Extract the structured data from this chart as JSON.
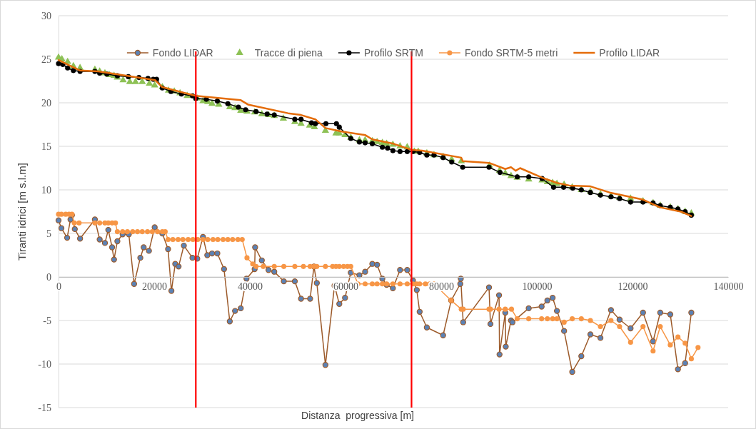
{
  "chart_data": {
    "type": "line",
    "xlabel": "Distanza  progressiva [m]",
    "ylabel": "Tiranti idrici [m s.l.m]",
    "xlim": [
      0,
      140000
    ],
    "xticks": [
      0,
      20000,
      40000,
      60000,
      80000,
      100000,
      120000,
      140000
    ],
    "ylim": [
      -15,
      30
    ],
    "yticks": [
      -15,
      -10,
      -5,
      0,
      5,
      10,
      15,
      20,
      25,
      30
    ],
    "grid": "y",
    "legend": "top",
    "ref_lines": [
      {
        "axis": "x",
        "value": 28700,
        "color": "#ff0000"
      },
      {
        "axis": "x",
        "value": 73800,
        "color": "#ff0000"
      }
    ],
    "series": [
      {
        "name": "Fondo LIDAR",
        "type": "line",
        "marker": "circle",
        "color": "#9c5a2a",
        "colors": [
          "#5b82b5",
          "#5b82b5",
          "#5b82b5",
          "#5b82b5",
          "#5b82b5",
          "#5b82b5",
          "#5b82b5",
          "#5b82b5",
          "#5b82b5",
          "#5b82b5",
          "#5b82b5",
          "#5b82b5",
          "#5b82b5",
          "#5b82b5",
          "#5b82b5",
          "#5b82b5",
          "#5b82b5",
          "#5b82b5",
          "#5b82b5",
          "#5b82b5",
          "#5b82b5",
          "#5b82b5",
          "#5b82b5",
          "#5b82b5",
          "#5b82b5",
          "#5b82b5",
          "#5b82b5",
          "#5b82b5",
          "#5b82b5",
          "#5b82b5",
          "#5b82b5",
          "#5b82b5",
          "#5b82b5",
          "#5b82b5",
          "#5b82b5",
          "#5b82b5",
          "#5b82b5",
          "#5b82b5",
          "#5b82b5",
          "#5b82b5",
          "#5b82b5",
          "#5b82b5",
          "#5b82b5",
          "#5b82b5",
          "#5b82b5",
          "#5b82b5",
          "#5b82b5",
          "#5b82b5",
          "#5b82b5",
          "#5b82b5",
          "#5b82b5",
          "#5b82b5",
          "#5b82b5",
          "#5b82b5",
          "#5b82b5",
          "#5b82b5",
          "#5b82b5",
          "#5b82b5",
          "#5b82b5",
          "#5b82b5",
          "#5b82b5",
          "#5b82b5",
          "#5b82b5",
          "#5b82b5",
          "#5b82b5",
          "#5b82b5",
          "#5b82b5",
          "#5b82b5",
          "#5b82b5",
          "#5b82b5",
          "#5b82b5",
          "#5b82b5",
          "#5b82b5",
          "#5b82b5",
          "#5b82b5",
          "#5b82b5",
          "#5b82b5",
          "#5b82b5",
          "#5b82b5",
          "#5b82b5",
          "#5b82b5",
          "#5b82b5",
          "#5b82b5",
          "#5b82b5",
          "#5b82b5",
          "#5b82b5",
          "#5b82b5",
          "#5b82b5",
          "#5b82b5",
          "#5b82b5",
          "#5b82b5",
          "#5b82b5",
          "#5b82b5",
          "#5b82b5",
          "#5b82b5",
          "#5b82b5",
          "#5b82b5",
          "#5b82b5",
          "#5b82b5",
          "#5b82b5"
        ],
        "x": [
          0,
          600,
          1800,
          2500,
          2800,
          3400,
          4500,
          7600,
          8600,
          9700,
          10400,
          11200,
          11600,
          12300,
          13400,
          14700,
          15800,
          17100,
          17800,
          18900,
          20100,
          21700,
          22900,
          23600,
          24400,
          25100,
          26200,
          28000,
          29000,
          30200,
          31100,
          32100,
          33200,
          34600,
          35800,
          36900,
          38100,
          39300,
          41000,
          41100,
          42500,
          43900,
          45100,
          47100,
          49400,
          50700,
          52600,
          53400,
          54000,
          55800,
          57700,
          58700,
          59900,
          61100,
          62900,
          64100,
          65600,
          66600,
          67700,
          68600,
          69900,
          71400,
          72900,
          74100,
          74900,
          75500,
          77000,
          80400,
          82100,
          84000,
          84100,
          84600,
          90000,
          90300,
          92100,
          92200,
          93400,
          93500,
          94600,
          94900,
          98300,
          101000,
          102200,
          103300,
          104200,
          105700,
          107400,
          109300,
          111200,
          113300,
          115500,
          117300,
          119600,
          122200,
          124300,
          125800,
          127900,
          129500,
          131000,
          132300
        ],
        "values": [
          6.5,
          5.6,
          4.5,
          6.6,
          7.1,
          5.5,
          4.4,
          6.6,
          4.3,
          3.9,
          5.4,
          3.4,
          2.0,
          4.1,
          4.9,
          4.9,
          -0.8,
          2.2,
          3.4,
          3.0,
          5.7,
          5.0,
          3.2,
          -1.6,
          1.5,
          1.2,
          3.6,
          2.2,
          2.1,
          4.6,
          2.5,
          2.7,
          2.7,
          0.9,
          -5.1,
          -3.9,
          -3.6,
          -0.2,
          0.9,
          3.4,
          1.9,
          0.8,
          0.6,
          -0.5,
          -0.5,
          -2.5,
          -2.5,
          1.2,
          -0.7,
          -10.1,
          -1.0,
          -3.1,
          -2.4,
          0.5,
          0.2,
          0.6,
          1.5,
          1.4,
          -0.2,
          -0.9,
          -1.3,
          0.8,
          0.8,
          -0.4,
          -1.5,
          -4.0,
          -5.8,
          -6.7,
          -2.7,
          -0.8,
          -0.2,
          -5.2,
          -1.2,
          -5.4,
          -2.1,
          -8.9,
          -4.1,
          -8.0,
          -5.0,
          -5.2,
          -3.6,
          -3.4,
          -2.7,
          -2.4,
          -3.9,
          -6.2,
          -10.9,
          -9.1,
          -6.6,
          -7.0,
          -3.8,
          -4.9,
          -5.9,
          -4.1,
          -7.4,
          -4.1,
          -4.3,
          -10.6,
          -9.9,
          -4.1
        ]
      },
      {
        "name": "Tracce di piena",
        "type": "scatter",
        "marker": "triangle",
        "color": "#8dc155",
        "x": [
          0,
          700,
          1900,
          3100,
          4500,
          7600,
          8600,
          9700,
          10600,
          11600,
          12300,
          13500,
          14900,
          16100,
          17500,
          19000,
          20100,
          21700,
          23000,
          24200,
          25400,
          26900,
          29000,
          30200,
          31200,
          32100,
          33500,
          35800,
          36900,
          38100,
          39400,
          41000,
          42500,
          43900,
          45100,
          47000,
          49400,
          50700,
          52500,
          53500,
          55800,
          58000,
          58700,
          59900,
          61100,
          62900,
          64100,
          65600,
          66600,
          67700,
          68600,
          69900,
          71400,
          72900,
          74400,
          75200,
          77000,
          78500,
          80400,
          82200,
          84200,
          90100,
          92200,
          93400,
          94600,
          95900,
          98300,
          101100,
          102200,
          103300,
          104200,
          105700,
          107400,
          109300,
          111200,
          113300,
          115500,
          117300,
          119600,
          122200,
          124300,
          125800,
          127900,
          129500,
          131000,
          132300
        ],
        "values": [
          25.2,
          25.0,
          24.7,
          24.2,
          24.0,
          23.8,
          23.6,
          23.4,
          23.2,
          23.1,
          22.9,
          22.6,
          22.4,
          22.4,
          22.4,
          22.2,
          22.0,
          21.8,
          21.4,
          21.3,
          21.1,
          20.8,
          20.5,
          20.2,
          20.1,
          19.9,
          19.8,
          19.5,
          19.4,
          19.1,
          19.0,
          18.9,
          18.7,
          18.6,
          18.5,
          18.2,
          17.8,
          17.6,
          17.4,
          17.2,
          16.8,
          16.5,
          16.5,
          16.3,
          16.0,
          15.7,
          15.7,
          15.6,
          15.5,
          15.4,
          15.3,
          15.2,
          15.0,
          14.9,
          14.4,
          14.4,
          14.2,
          14.0,
          13.8,
          13.5,
          13.3,
          12.8,
          12.2,
          11.9,
          11.6,
          11.4,
          11.2,
          11.1,
          10.9,
          10.8,
          10.7,
          10.6,
          10.3,
          10.0,
          9.8,
          9.5,
          9.3,
          9.1,
          9.0,
          8.7,
          8.5,
          8.2,
          8.0,
          7.8,
          7.5,
          7.3
        ]
      },
      {
        "name": "Profilo SRTM",
        "type": "line",
        "marker": "circle",
        "color": "#000000",
        "x": [
          0,
          900,
          1900,
          3100,
          4500,
          7600,
          8600,
          10100,
          12300,
          14600,
          16800,
          18700,
          19800,
          20500,
          21700,
          23500,
          25700,
          28000,
          28700,
          30900,
          33200,
          35400,
          37600,
          39100,
          41300,
          43600,
          45100,
          49400,
          50700,
          52900,
          53700,
          55900,
          58100,
          58700,
          61100,
          62900,
          64100,
          65600,
          67700,
          68800,
          69900,
          71400,
          72900,
          74100,
          75500,
          77000,
          78500,
          80400,
          82200,
          84500,
          90000,
          92300,
          95900,
          98300,
          101100,
          103500,
          105600,
          107500,
          109300,
          111200,
          113300,
          115500,
          117300,
          119600,
          122200,
          124300,
          125800,
          127900,
          129500,
          131000,
          132300
        ],
        "values": [
          24.5,
          24.4,
          24.0,
          23.7,
          23.6,
          23.6,
          23.4,
          23.3,
          23.1,
          23.0,
          22.9,
          22.8,
          22.7,
          22.7,
          21.7,
          21.3,
          21.0,
          20.8,
          20.5,
          20.4,
          20.2,
          19.9,
          19.5,
          19.2,
          19.0,
          18.7,
          18.6,
          18.1,
          18.1,
          17.7,
          17.6,
          17.6,
          17.6,
          17.2,
          15.9,
          15.5,
          15.4,
          15.3,
          14.9,
          14.8,
          14.5,
          14.4,
          14.4,
          14.4,
          14.3,
          14.0,
          14.0,
          13.7,
          13.2,
          12.6,
          12.6,
          12.0,
          11.5,
          11.5,
          11.3,
          10.3,
          10.3,
          10.2,
          10.0,
          9.7,
          9.4,
          9.2,
          9.0,
          8.6,
          8.6,
          8.5,
          8.2,
          8.0,
          7.8,
          7.5,
          7.1
        ]
      },
      {
        "name": "Fondo SRTM-5 metri",
        "type": "line",
        "marker": "circle",
        "color": "#f79646",
        "x": [
          0,
          600,
          1500,
          2200,
          2800,
          3300,
          4300,
          7600,
          8600,
          9700,
          10400,
          11200,
          11900,
          12300,
          13400,
          14400,
          15500,
          16500,
          17500,
          18600,
          19600,
          20700,
          21700,
          22300,
          22900,
          23900,
          25000,
          26000,
          27100,
          28100,
          29100,
          30200,
          31200,
          32300,
          33300,
          34400,
          35400,
          36400,
          37500,
          38400,
          39400,
          40600,
          41300,
          42800,
          45100,
          47100,
          49400,
          51200,
          52600,
          53400,
          54000,
          55800,
          57300,
          58000,
          58700,
          59600,
          60400,
          61100,
          62600,
          64100,
          65600,
          66600,
          67700,
          68600,
          69900,
          71400,
          72900,
          74100,
          74900,
          75500,
          76700,
          77600,
          78500,
          82100,
          84200,
          84600,
          90000,
          90300,
          92100,
          93400,
          94700,
          95900,
          98300,
          101000,
          102200,
          103300,
          104200,
          105700,
          107400,
          109300,
          111200,
          113300,
          115500,
          117300,
          119600,
          122200,
          124300,
          125800,
          127900,
          129500,
          131000,
          132300,
          133700
        ],
        "values": [
          7.2,
          7.2,
          7.2,
          7.2,
          7.2,
          6.2,
          6.2,
          6.2,
          6.2,
          6.2,
          6.2,
          6.2,
          6.2,
          5.2,
          5.2,
          5.2,
          5.2,
          5.2,
          5.2,
          5.2,
          5.2,
          5.2,
          5.2,
          5.2,
          4.3,
          4.3,
          4.3,
          4.3,
          4.3,
          4.3,
          4.3,
          4.3,
          4.3,
          4.3,
          4.3,
          4.3,
          4.3,
          4.3,
          4.3,
          4.3,
          2.2,
          1.5,
          1.2,
          1.2,
          1.2,
          1.2,
          1.2,
          1.2,
          1.2,
          1.2,
          1.2,
          1.2,
          1.2,
          1.2,
          1.2,
          1.2,
          1.2,
          1.2,
          -0.8,
          -0.8,
          -0.8,
          -0.8,
          -0.8,
          -0.8,
          -0.8,
          -0.8,
          -0.8,
          -0.8,
          -0.8,
          -0.8,
          -0.8,
          -0.8,
          -0.8,
          -2.7,
          -3.7,
          -3.7,
          -3.7,
          -3.7,
          -3.7,
          -3.7,
          -3.7,
          -4.8,
          -4.8,
          -4.8,
          -4.8,
          -4.8,
          -4.8,
          -5.2,
          -4.8,
          -4.8,
          -5.0,
          -5.7,
          -5.0,
          -5.7,
          -7.5,
          -5.7,
          -8.5,
          -5.7,
          -7.8,
          -6.9,
          -7.6,
          -9.4,
          -8.1
        ]
      },
      {
        "name": "Profilo LIDAR",
        "type": "line",
        "marker": "none",
        "color": "#e46c0a",
        "x": [
          0,
          4500,
          8300,
          20200,
          21700,
          28700,
          38100,
          39600,
          48000,
          50700,
          53700,
          55800,
          59200,
          64100,
          65600,
          70000,
          73800,
          76000,
          84200,
          84500,
          90000,
          93400,
          94600,
          95600,
          96500,
          101100,
          104200,
          106800,
          111200,
          115200,
          122100,
          125700,
          130100,
          132300
        ],
        "values": [
          24.9,
          23.7,
          23.6,
          22.6,
          21.8,
          20.8,
          20.3,
          19.8,
          18.8,
          18.6,
          18.1,
          17.1,
          16.7,
          16.3,
          15.8,
          15.3,
          14.6,
          14.5,
          13.7,
          13.3,
          13.1,
          12.4,
          12.6,
          12.2,
          12.5,
          11.4,
          10.8,
          10.5,
          10.4,
          9.7,
          8.9,
          8.0,
          7.5,
          7.0
        ]
      }
    ]
  }
}
